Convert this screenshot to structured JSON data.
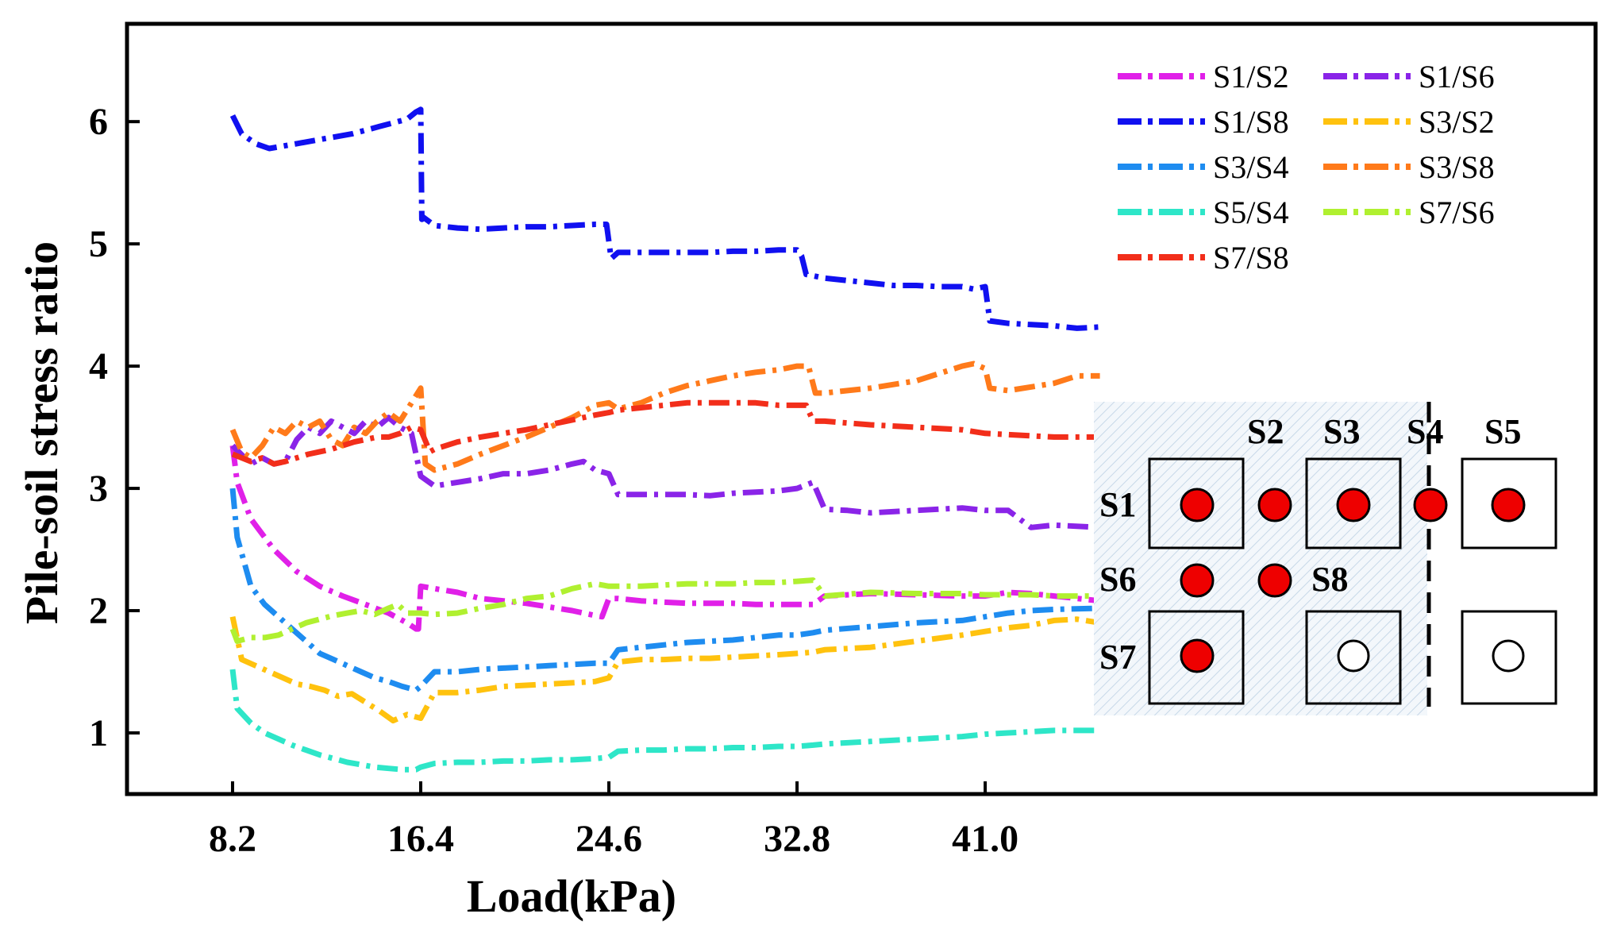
{
  "chart_data": {
    "type": "line",
    "title": "",
    "xlabel": "Load(kPa)",
    "ylabel": "Pile-soil stress ratio",
    "xlim": [
      3.6,
      67.6
    ],
    "ylim": [
      0.5,
      6.8
    ],
    "xticks": [
      8.2,
      16.4,
      24.6,
      32.8,
      41.0
    ],
    "xtick_labels": [
      "8.2",
      "16.4",
      "24.6",
      "32.8",
      "41.0"
    ],
    "yticks": [
      1,
      2,
      3,
      4,
      5,
      6
    ],
    "ytick_labels": [
      "1",
      "2",
      "3",
      "4",
      "5",
      "6"
    ],
    "legend_position": "top-right",
    "series": [
      {
        "name": "S1/S2",
        "color": "#e020e8",
        "x": [
          8.2,
          8.4,
          9,
          10,
          11,
          12,
          13,
          14,
          15,
          15.8,
          16.2,
          16.3,
          16.4,
          17,
          18,
          19,
          20,
          21,
          22,
          23,
          24,
          24.3,
          24.6,
          25,
          26,
          27,
          28,
          29,
          30,
          31,
          32,
          33,
          33.5,
          34,
          36,
          38,
          40,
          41,
          42,
          43,
          44,
          46
        ],
        "y": [
          3.35,
          3.05,
          2.75,
          2.5,
          2.32,
          2.2,
          2.12,
          2.05,
          1.98,
          1.9,
          1.85,
          1.85,
          2.2,
          2.18,
          2.15,
          2.1,
          2.08,
          2.06,
          2.03,
          2.0,
          1.96,
          1.95,
          2.1,
          2.1,
          2.08,
          2.07,
          2.06,
          2.06,
          2.06,
          2.05,
          2.05,
          2.05,
          2.05,
          2.12,
          2.14,
          2.13,
          2.12,
          2.12,
          2.15,
          2.14,
          2.12,
          2.08
        ]
      },
      {
        "name": "S1/S6",
        "color": "#8a24e8",
        "x": [
          8.2,
          9,
          9.5,
          10,
          10.5,
          11,
          11.5,
          12,
          12.5,
          13,
          13.5,
          14,
          14.5,
          15,
          15.5,
          16,
          16.4,
          17,
          18,
          19,
          20,
          21,
          22,
          23,
          23.5,
          24,
          24.6,
          25,
          26,
          27,
          28,
          29,
          30,
          31,
          32,
          32.8,
          33.5,
          34,
          35,
          36,
          38,
          40,
          41,
          42,
          43,
          44,
          46
        ],
        "y": [
          3.35,
          3.2,
          3.25,
          3.2,
          3.22,
          3.4,
          3.5,
          3.45,
          3.55,
          3.5,
          3.45,
          3.55,
          3.5,
          3.58,
          3.5,
          3.45,
          3.1,
          3.02,
          3.05,
          3.08,
          3.12,
          3.12,
          3.15,
          3.2,
          3.22,
          3.15,
          3.12,
          2.95,
          2.95,
          2.95,
          2.95,
          2.94,
          2.96,
          2.97,
          2.98,
          3.0,
          3.05,
          2.83,
          2.82,
          2.8,
          2.82,
          2.84,
          2.82,
          2.82,
          2.68,
          2.7,
          2.68
        ]
      },
      {
        "name": "S1/S8",
        "color": "#1010f0",
        "x": [
          8.2,
          8.6,
          9.2,
          9.8,
          10.4,
          11,
          11.6,
          12.2,
          12.8,
          13.4,
          14,
          14.6,
          15.2,
          15.8,
          16.2,
          16.4,
          16.45,
          16.5,
          17,
          18,
          19,
          20,
          21,
          22,
          23,
          24,
          24.5,
          24.7,
          25,
          26,
          27,
          28,
          29,
          30,
          31,
          32,
          32.8,
          33,
          33.2,
          34,
          35,
          36,
          37,
          38,
          39,
          40,
          40.5,
          41,
          41.2,
          42,
          43,
          44,
          45,
          46
        ],
        "y": [
          6.05,
          5.9,
          5.82,
          5.78,
          5.8,
          5.82,
          5.84,
          5.86,
          5.88,
          5.9,
          5.93,
          5.96,
          5.99,
          6.02,
          6.08,
          6.1,
          5.2,
          5.22,
          5.15,
          5.13,
          5.12,
          5.13,
          5.14,
          5.14,
          5.15,
          5.16,
          5.16,
          4.88,
          4.93,
          4.93,
          4.93,
          4.93,
          4.93,
          4.94,
          4.94,
          4.95,
          4.95,
          4.9,
          4.75,
          4.72,
          4.7,
          4.68,
          4.66,
          4.66,
          4.65,
          4.65,
          4.63,
          4.65,
          4.37,
          4.35,
          4.34,
          4.33,
          4.31,
          4.32
        ]
      },
      {
        "name": "S3/S2",
        "color": "#ffc20e",
        "x": [
          8.2,
          8.6,
          9.2,
          9.8,
          10.4,
          11,
          11.6,
          12.2,
          12.8,
          13.4,
          14,
          14.6,
          15.2,
          15.8,
          16.4,
          17,
          18,
          19,
          20,
          21,
          22,
          23,
          24,
          24.6,
          25,
          26,
          27,
          28,
          29,
          30,
          31,
          32,
          32.8,
          33.5,
          34,
          36,
          38,
          40,
          41,
          42,
          43,
          44,
          45,
          46
        ],
        "y": [
          1.95,
          1.6,
          1.55,
          1.5,
          1.45,
          1.4,
          1.38,
          1.35,
          1.3,
          1.32,
          1.25,
          1.18,
          1.1,
          1.15,
          1.12,
          1.33,
          1.33,
          1.35,
          1.38,
          1.39,
          1.4,
          1.41,
          1.42,
          1.45,
          1.58,
          1.6,
          1.6,
          1.61,
          1.61,
          1.62,
          1.63,
          1.64,
          1.65,
          1.66,
          1.68,
          1.7,
          1.75,
          1.8,
          1.83,
          1.86,
          1.88,
          1.92,
          1.93,
          1.9
        ]
      },
      {
        "name": "S3/S4",
        "color": "#1e8cf0",
        "x": [
          8.2,
          8.4,
          9,
          9.6,
          10.2,
          10.8,
          11.4,
          12,
          12.6,
          13.2,
          13.8,
          14.4,
          15,
          15.6,
          16.2,
          16.4,
          17,
          18,
          19,
          20,
          21,
          22,
          23,
          24,
          24.6,
          25,
          26,
          27,
          28,
          29,
          30,
          31,
          32,
          32.8,
          33.5,
          34,
          36,
          38,
          40,
          41,
          42,
          43,
          44,
          46
        ],
        "y": [
          3.0,
          2.6,
          2.2,
          2.05,
          1.95,
          1.85,
          1.75,
          1.65,
          1.6,
          1.55,
          1.5,
          1.45,
          1.42,
          1.38,
          1.35,
          1.38,
          1.5,
          1.5,
          1.52,
          1.53,
          1.54,
          1.55,
          1.56,
          1.57,
          1.57,
          1.68,
          1.7,
          1.72,
          1.74,
          1.75,
          1.76,
          1.78,
          1.8,
          1.8,
          1.82,
          1.84,
          1.87,
          1.9,
          1.92,
          1.95,
          1.98,
          2.0,
          2.01,
          2.02
        ]
      },
      {
        "name": "S3/S8",
        "color": "#ff7a1a",
        "x": [
          8.2,
          8.6,
          9,
          9.5,
          10,
          10.5,
          11,
          11.5,
          12,
          12.5,
          13,
          13.5,
          14,
          14.5,
          15,
          15.5,
          16,
          16.4,
          16.6,
          17,
          18,
          19,
          20,
          21,
          22,
          23,
          24,
          24.6,
          25,
          26,
          27,
          28,
          29,
          30,
          31,
          32,
          32.8,
          33.3,
          33.6,
          34,
          36,
          38,
          39,
          40,
          40.5,
          41,
          41.2,
          42,
          44,
          45,
          46
        ],
        "y": [
          3.48,
          3.3,
          3.25,
          3.35,
          3.5,
          3.45,
          3.55,
          3.5,
          3.55,
          3.4,
          3.35,
          3.5,
          3.45,
          3.55,
          3.62,
          3.55,
          3.7,
          3.82,
          3.2,
          3.15,
          3.2,
          3.28,
          3.35,
          3.42,
          3.5,
          3.58,
          3.68,
          3.7,
          3.65,
          3.7,
          3.78,
          3.84,
          3.88,
          3.92,
          3.95,
          3.97,
          4.0,
          4.0,
          3.78,
          3.78,
          3.82,
          3.88,
          3.94,
          4.0,
          4.02,
          3.98,
          3.82,
          3.8,
          3.86,
          3.92,
          3.92
        ]
      },
      {
        "name": "S5/S4",
        "color": "#2ee6c8",
        "x": [
          8.2,
          8.4,
          9,
          9.6,
          10.2,
          10.8,
          11.4,
          12,
          12.6,
          13.2,
          13.8,
          14.4,
          15,
          15.6,
          16.2,
          16.4,
          17,
          18,
          19,
          20,
          21,
          22,
          23,
          24,
          24.6,
          25,
          26,
          27,
          28,
          29,
          30,
          31,
          32,
          32.8,
          33.5,
          34,
          36,
          38,
          40,
          41,
          42,
          43,
          44,
          46
        ],
        "y": [
          1.52,
          1.2,
          1.08,
          1.0,
          0.95,
          0.9,
          0.86,
          0.82,
          0.79,
          0.76,
          0.74,
          0.72,
          0.71,
          0.7,
          0.7,
          0.72,
          0.75,
          0.76,
          0.76,
          0.77,
          0.77,
          0.78,
          0.78,
          0.79,
          0.8,
          0.85,
          0.86,
          0.86,
          0.87,
          0.87,
          0.88,
          0.88,
          0.89,
          0.89,
          0.9,
          0.91,
          0.93,
          0.95,
          0.97,
          0.99,
          1.0,
          1.01,
          1.02,
          1.02
        ]
      },
      {
        "name": "S7/S6",
        "color": "#b0f030",
        "x": [
          8.2,
          8.4,
          9,
          9.6,
          10.2,
          10.8,
          11.4,
          12,
          12.6,
          13.2,
          13.8,
          14.4,
          15,
          15.4,
          15.8,
          16.4,
          17,
          18,
          19,
          20,
          21,
          22,
          23,
          24,
          24.6,
          25,
          26,
          27,
          28,
          29,
          30,
          31,
          32,
          32.8,
          33.5,
          34,
          36,
          38,
          40,
          41,
          42,
          43,
          44,
          46
        ],
        "y": [
          1.85,
          1.75,
          1.78,
          1.78,
          1.8,
          1.85,
          1.9,
          1.93,
          1.96,
          1.98,
          2.0,
          1.97,
          2.02,
          2.05,
          1.98,
          1.98,
          1.97,
          1.98,
          2.02,
          2.05,
          2.1,
          2.12,
          2.18,
          2.22,
          2.2,
          2.2,
          2.2,
          2.21,
          2.22,
          2.22,
          2.22,
          2.23,
          2.23,
          2.24,
          2.25,
          2.12,
          2.15,
          2.14,
          2.14,
          2.13,
          2.13,
          2.13,
          2.12,
          2.12
        ]
      },
      {
        "name": "S7/S8",
        "color": "#f22e1a",
        "x": [
          8.2,
          9,
          9.5,
          10,
          10.5,
          11,
          11.5,
          12,
          12.5,
          13,
          13.5,
          14,
          14.5,
          15,
          15.5,
          16,
          16.4,
          16.8,
          17,
          18,
          19,
          20,
          21,
          22,
          23,
          24,
          24.6,
          25,
          26,
          27,
          28,
          29,
          30,
          31,
          32,
          32.8,
          33.2,
          33.5,
          34,
          36,
          38,
          40,
          41,
          42,
          44,
          46
        ],
        "y": [
          3.28,
          3.22,
          3.25,
          3.2,
          3.22,
          3.25,
          3.28,
          3.3,
          3.32,
          3.35,
          3.38,
          3.4,
          3.42,
          3.42,
          3.45,
          3.5,
          3.48,
          3.3,
          3.32,
          3.38,
          3.42,
          3.45,
          3.48,
          3.52,
          3.56,
          3.6,
          3.62,
          3.64,
          3.66,
          3.68,
          3.7,
          3.7,
          3.7,
          3.7,
          3.68,
          3.68,
          3.68,
          3.55,
          3.55,
          3.52,
          3.5,
          3.48,
          3.45,
          3.44,
          3.42,
          3.42
        ]
      }
    ],
    "legend_order": [
      "S1/S2",
      "S1/S6",
      "S1/S8",
      "S3/S2",
      "S3/S4",
      "S3/S8",
      "S5/S4",
      "S7/S6",
      "S7/S8"
    ]
  },
  "layout_diagram": {
    "labels": [
      "S1",
      "S2",
      "S3",
      "S4",
      "S5",
      "S6",
      "S7",
      "S8"
    ],
    "marker_color": "#ee0000",
    "hatch_color": "#c7d8e8"
  }
}
